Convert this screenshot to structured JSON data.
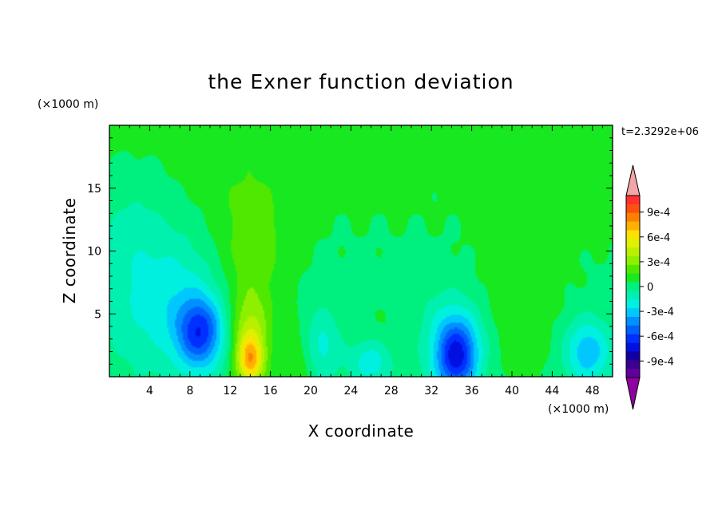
{
  "chart_data": {
    "type": "heatmap",
    "title": "the Exner function deviation",
    "xlabel": "X coordinate",
    "ylabel": "Z coordinate",
    "x_unit": "(×1000 m)",
    "y_unit": "(×1000 m)",
    "time_label": "t=2.3292e+06",
    "xlim": [
      0,
      50
    ],
    "ylim": [
      0,
      20
    ],
    "x_ticks": [
      4,
      8,
      12,
      16,
      20,
      24,
      28,
      32,
      36,
      40,
      44,
      48
    ],
    "y_ticks": [
      5,
      10,
      15
    ],
    "colorbar": {
      "min": -0.0011,
      "max": 0.0011,
      "step": 0.0001,
      "tick_values": [
        0.0009,
        0.0006,
        0.0003,
        0,
        -0.0003,
        -0.0006,
        -0.0009
      ],
      "tick_labels": [
        "9e-4",
        "6e-4",
        "3e-4",
        "0",
        "-3e-4",
        "-6e-4",
        "-9e-4"
      ],
      "colors_high_to_low": [
        "#ff3030",
        "#ff5010",
        "#ff8000",
        "#ffb000",
        "#ffe000",
        "#e0f000",
        "#b8f000",
        "#8ef000",
        "#50e800",
        "#18e820",
        "#00f080",
        "#00f0b0",
        "#00f0e0",
        "#00c8ff",
        "#0090ff",
        "#0060ff",
        "#0030ff",
        "#0010e0",
        "#1000a0",
        "#3c0090",
        "#6000a0"
      ],
      "over_color": "#f4a6a6",
      "under_color": "#9000a0"
    },
    "features": [
      {
        "x": 25,
        "z": 18,
        "value": 5e-05,
        "sx": 30,
        "sz": 6
      },
      {
        "x": 0,
        "z": 19,
        "value": 6e-05,
        "sx": 8,
        "sz": 4
      },
      {
        "x": 50,
        "z": 19,
        "value": 5e-05,
        "sx": 4,
        "sz": 3
      },
      {
        "x": 14,
        "z": 10,
        "value": 0.00018,
        "sx": 2.6,
        "sz": 4.5
      },
      {
        "x": 14,
        "z": 3,
        "value": 0.00035,
        "sx": 1.3,
        "sz": 2.5
      },
      {
        "x": 14,
        "z": 1.2,
        "value": 0.00045,
        "sx": 0.9,
        "sz": 1.3
      },
      {
        "x": 19,
        "z": 1.5,
        "value": 0.00012,
        "sx": 1.2,
        "sz": 2
      },
      {
        "x": 9,
        "z": 3.5,
        "value": -0.00055,
        "sx": 1.6,
        "sz": 2
      },
      {
        "x": 6,
        "z": 6,
        "value": -0.00022,
        "sx": 4,
        "sz": 4
      },
      {
        "x": 2,
        "z": 13,
        "value": -0.0001,
        "sx": 3,
        "sz": 5
      },
      {
        "x": 34.5,
        "z": 1.5,
        "value": -0.00058,
        "sx": 1.4,
        "sz": 2
      },
      {
        "x": 34,
        "z": 3,
        "value": -0.00025,
        "sx": 2.8,
        "sz": 2.6
      },
      {
        "x": 47.5,
        "z": 2,
        "value": -0.00035,
        "sx": 1.6,
        "sz": 1.8
      },
      {
        "x": 26,
        "z": 1.2,
        "value": -0.00025,
        "sx": 1.5,
        "sz": 1.3
      },
      {
        "x": 21,
        "z": 2.5,
        "value": -0.00022,
        "sx": 1.3,
        "sz": 2
      },
      {
        "x": 40,
        "z": 4,
        "value": 0.0001,
        "sx": 3,
        "sz": 4
      },
      {
        "x": 30,
        "z": 3,
        "value": 8e-05,
        "sx": 3,
        "sz": 2
      },
      {
        "x": 42,
        "z": 9,
        "value": 4e-05,
        "sx": 3.5,
        "sz": 3
      },
      {
        "x": 29,
        "z": 15,
        "value": 5e-05,
        "sx": 0.7,
        "sz": 1
      },
      {
        "x": 48,
        "z": 15,
        "value": 4e-05,
        "sx": 2,
        "sz": 3
      }
    ]
  }
}
